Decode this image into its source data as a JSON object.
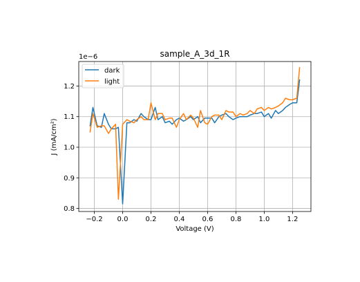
{
  "chart_data": {
    "type": "line",
    "title": "sample_A_3d_1R",
    "xlabel": "Voltage (V)",
    "ylabel": "J (mA/cm²)",
    "y_offset_label": "1e−6",
    "xlim": [
      -0.31,
      1.33
    ],
    "ylim": [
      0.79,
      1.28
    ],
    "x_ticks": [
      -0.2,
      0.0,
      0.2,
      0.4,
      0.6,
      0.8,
      1.0,
      1.2
    ],
    "x_tick_labels": [
      "−0.2",
      "0.0",
      "0.2",
      "0.4",
      "0.6",
      "0.8",
      "1.0",
      "1.2"
    ],
    "y_ticks": [
      0.8,
      0.9,
      1.0,
      1.1,
      1.2
    ],
    "y_tick_labels": [
      "0.8",
      "0.9",
      "1.0",
      "1.1",
      "1.2"
    ],
    "grid": true,
    "legend_position": "top-left",
    "series": [
      {
        "name": "dark",
        "color": "#1f77b4",
        "x": [
          -0.23,
          -0.21,
          -0.18,
          -0.15,
          -0.13,
          -0.1,
          -0.08,
          -0.05,
          -0.03,
          0.0,
          0.03,
          0.05,
          0.08,
          0.1,
          0.13,
          0.15,
          0.18,
          0.2,
          0.23,
          0.25,
          0.28,
          0.3,
          0.33,
          0.35,
          0.38,
          0.4,
          0.43,
          0.45,
          0.48,
          0.5,
          0.53,
          0.55,
          0.58,
          0.6,
          0.63,
          0.65,
          0.68,
          0.7,
          0.73,
          0.75,
          0.78,
          0.8,
          0.83,
          0.85,
          0.88,
          0.9,
          0.93,
          0.95,
          0.98,
          1.0,
          1.03,
          1.05,
          1.08,
          1.1,
          1.13,
          1.15,
          1.18,
          1.2,
          1.23,
          1.25
        ],
        "values": [
          1.07,
          1.13,
          1.07,
          1.065,
          1.11,
          1.075,
          1.06,
          1.06,
          1.065,
          0.815,
          1.08,
          1.08,
          1.09,
          1.085,
          1.11,
          1.1,
          1.09,
          1.09,
          1.13,
          1.09,
          1.1,
          1.08,
          1.085,
          1.075,
          1.09,
          1.095,
          1.085,
          1.09,
          1.1,
          1.09,
          1.1,
          1.08,
          1.095,
          1.095,
          1.095,
          1.08,
          1.1,
          1.105,
          1.11,
          1.1,
          1.09,
          1.095,
          1.1,
          1.1,
          1.1,
          1.105,
          1.11,
          1.11,
          1.115,
          1.1,
          1.11,
          1.095,
          1.12,
          1.11,
          1.12,
          1.13,
          1.14,
          1.145,
          1.145,
          1.22
        ]
      },
      {
        "name": "light",
        "color": "#ff7f0e",
        "x": [
          -0.23,
          -0.21,
          -0.18,
          -0.15,
          -0.13,
          -0.1,
          -0.08,
          -0.05,
          -0.03,
          0.0,
          0.03,
          0.05,
          0.08,
          0.1,
          0.13,
          0.15,
          0.18,
          0.2,
          0.23,
          0.25,
          0.28,
          0.3,
          0.33,
          0.35,
          0.38,
          0.4,
          0.43,
          0.45,
          0.48,
          0.5,
          0.53,
          0.55,
          0.58,
          0.6,
          0.63,
          0.65,
          0.68,
          0.7,
          0.73,
          0.75,
          0.78,
          0.8,
          0.83,
          0.85,
          0.88,
          0.9,
          0.93,
          0.95,
          0.98,
          1.0,
          1.03,
          1.05,
          1.08,
          1.1,
          1.13,
          1.15,
          1.18,
          1.2,
          1.23,
          1.25
        ],
        "values": [
          1.05,
          1.11,
          1.065,
          1.07,
          1.07,
          1.045,
          1.06,
          1.075,
          0.83,
          1.075,
          1.09,
          1.085,
          1.08,
          1.09,
          1.1,
          1.09,
          1.09,
          1.145,
          1.09,
          1.11,
          1.11,
          1.09,
          1.095,
          1.095,
          1.065,
          1.09,
          1.11,
          1.09,
          1.105,
          1.095,
          1.065,
          1.12,
          1.08,
          1.075,
          1.1,
          1.105,
          1.105,
          1.09,
          1.12,
          1.115,
          1.115,
          1.1,
          1.11,
          1.105,
          1.11,
          1.12,
          1.11,
          1.125,
          1.13,
          1.12,
          1.13,
          1.125,
          1.13,
          1.135,
          1.145,
          1.16,
          1.155,
          1.155,
          1.16,
          1.26
        ]
      }
    ]
  }
}
